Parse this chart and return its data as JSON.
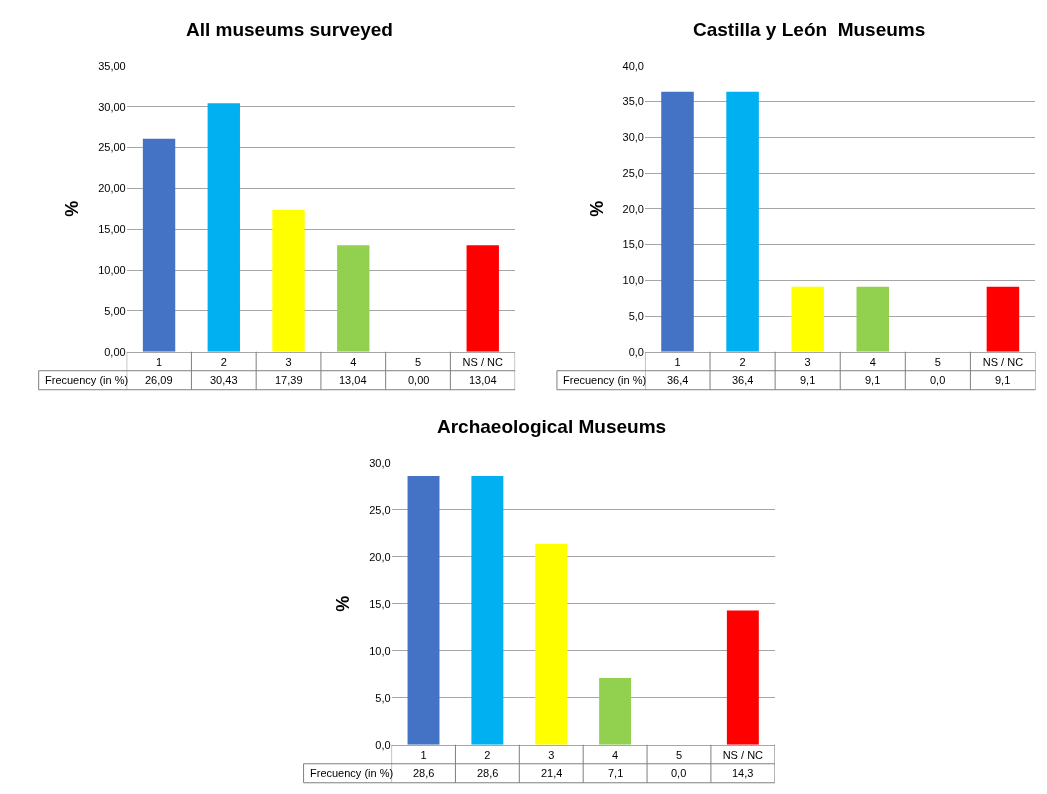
{
  "chart_data": [
    {
      "type": "bar",
      "title": "All museums surveyed",
      "ylabel": "%",
      "categories": [
        "1",
        "2",
        "3",
        "4",
        "5",
        "NS / NC"
      ],
      "values": [
        26.09,
        30.43,
        17.39,
        13.04,
        0.0,
        13.04
      ],
      "value_labels": [
        "26,09",
        "30,43",
        "17,39",
        "13,04",
        "0,00",
        "13,04"
      ],
      "colors": [
        "#4472c4",
        "#00b0f0",
        "#ffff00",
        "#92d050",
        null,
        "#ff0000"
      ],
      "annotations": [
        "Frecuency (in %)"
      ],
      "ylim": [
        0,
        35
      ],
      "yticks": [
        {
          "value": 0,
          "label": "0,00"
        },
        {
          "value": 5,
          "label": "5,00"
        },
        {
          "value": 10,
          "label": "10,00"
        },
        {
          "value": 15,
          "label": "15,00"
        },
        {
          "value": 20,
          "label": "20,00"
        },
        {
          "value": 25,
          "label": "25,00"
        },
        {
          "value": 30,
          "label": "30,00"
        },
        {
          "value": 35,
          "label": "35,00"
        }
      ],
      "grid": "y",
      "legend": false
    },
    {
      "type": "bar",
      "title": "Castilla y León  Museums",
      "ylabel": "%",
      "categories": [
        "1",
        "2",
        "3",
        "4",
        "5",
        "NS / NC"
      ],
      "values": [
        36.4,
        36.4,
        9.1,
        9.1,
        0.0,
        9.1
      ],
      "value_labels": [
        "36,4",
        "36,4",
        "9,1",
        "9,1",
        "0,0",
        "9,1"
      ],
      "colors": [
        "#4472c4",
        "#00b0f0",
        "#ffff00",
        "#92d050",
        null,
        "#ff0000"
      ],
      "annotations": [
        "Frecuency (in %)"
      ],
      "ylim": [
        0,
        40
      ],
      "yticks": [
        {
          "value": 0,
          "label": "0,0"
        },
        {
          "value": 5,
          "label": "5,0"
        },
        {
          "value": 10,
          "label": "10,0"
        },
        {
          "value": 15,
          "label": "15,0"
        },
        {
          "value": 20,
          "label": "20,0"
        },
        {
          "value": 25,
          "label": "25,0"
        },
        {
          "value": 30,
          "label": "30,0"
        },
        {
          "value": 35,
          "label": "35,0"
        },
        {
          "value": 40,
          "label": "40,0"
        }
      ],
      "grid": "y",
      "legend": false
    },
    {
      "type": "bar",
      "title": "Archaeological Museums",
      "ylabel": "%",
      "categories": [
        "1",
        "2",
        "3",
        "4",
        "5",
        "NS / NC"
      ],
      "values": [
        28.6,
        28.6,
        21.4,
        7.1,
        0.0,
        14.3
      ],
      "value_labels": [
        "28,6",
        "28,6",
        "21,4",
        "7,1",
        "0,0",
        "14,3"
      ],
      "colors": [
        "#4472c4",
        "#00b0f0",
        "#ffff00",
        "#92d050",
        null,
        "#ff0000"
      ],
      "annotations": [
        "Frecuency (in %)"
      ],
      "ylim": [
        0,
        30
      ],
      "yticks": [
        {
          "value": 0,
          "label": "0,0"
        },
        {
          "value": 5,
          "label": "5,0"
        },
        {
          "value": 10,
          "label": "10,0"
        },
        {
          "value": 15,
          "label": "15,0"
        },
        {
          "value": 20,
          "label": "20,0"
        },
        {
          "value": 25,
          "label": "25,0"
        },
        {
          "value": 30,
          "label": "30,0"
        }
      ],
      "grid": "y",
      "legend": false
    }
  ]
}
